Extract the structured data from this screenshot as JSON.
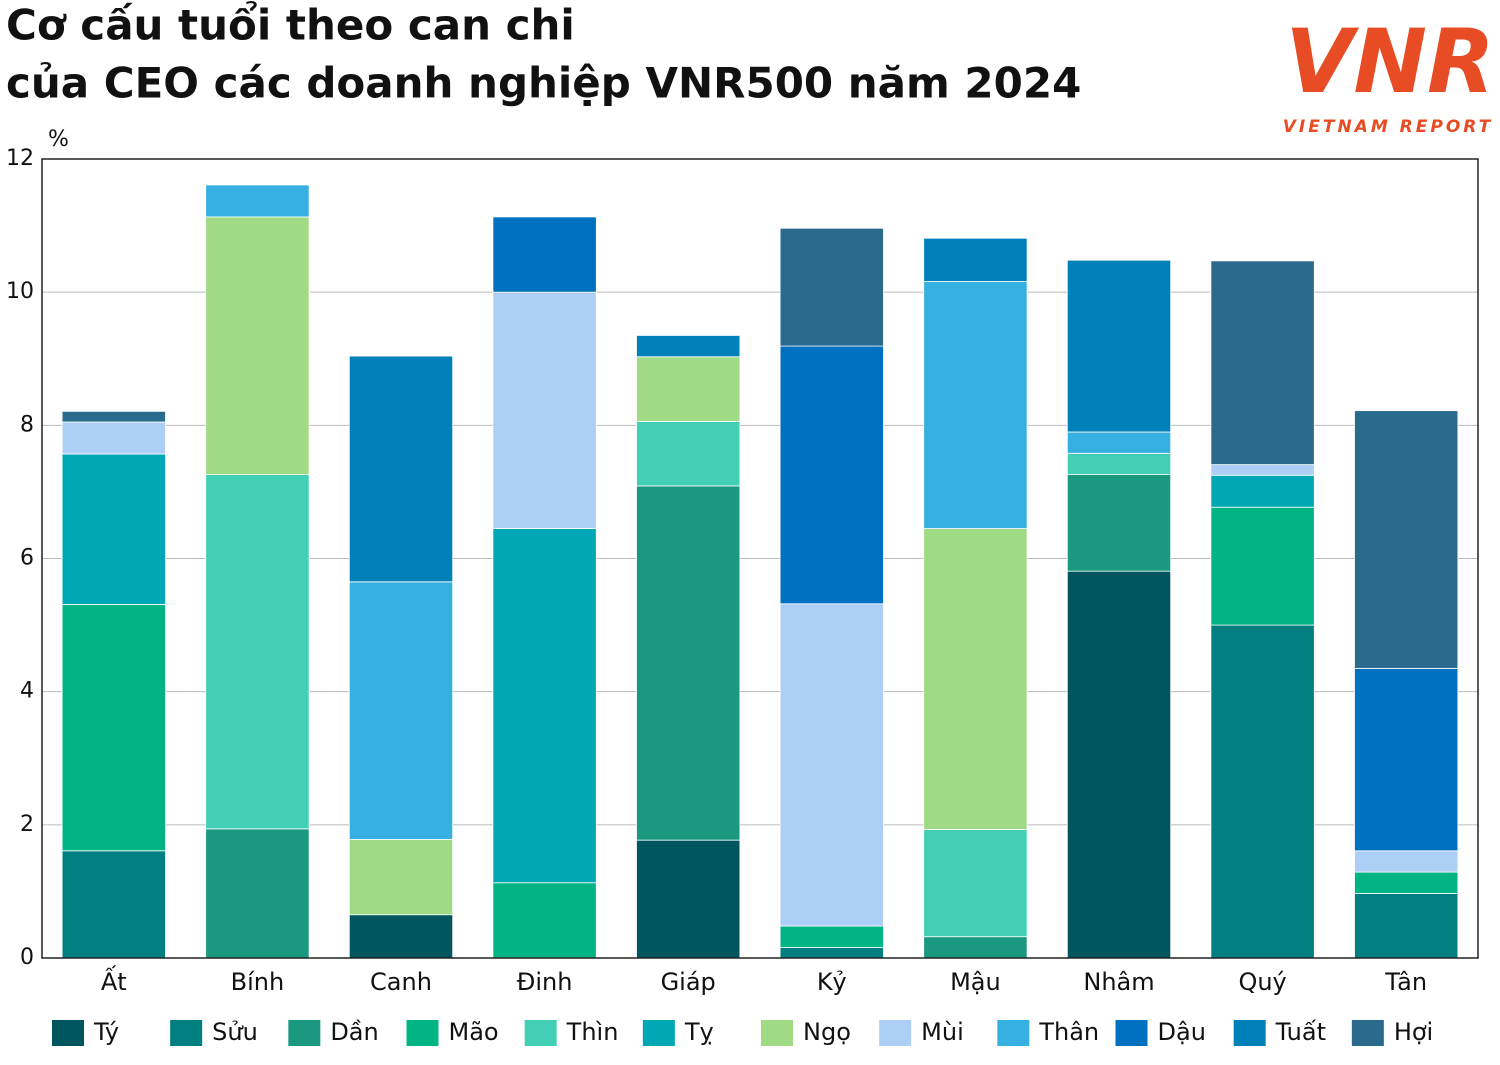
{
  "chart_data": {
    "type": "stacked-bar",
    "title": [
      "Cơ cấu tuổi theo can chi",
      "của CEO các doanh nghiệp VNR500 năm 2024"
    ],
    "logo": {
      "mark": "VNR",
      "text": "VIETNAM REPORT"
    },
    "y_unit": "%",
    "categories": [
      "Ất",
      "Bính",
      "Canh",
      "Đinh",
      "Giáp",
      "Kỷ",
      "Mậu",
      "Nhâm",
      "Quý",
      "Tân"
    ],
    "series": [
      {
        "name": "Tý",
        "color": "#00565e",
        "values": [
          0,
          0,
          0.65,
          0,
          1.77,
          0,
          0,
          5.81,
          0,
          0
        ]
      },
      {
        "name": "Sửu",
        "color": "#007f80",
        "values": [
          1.61,
          0,
          0,
          0,
          0,
          0.16,
          0,
          0,
          5.0,
          0.97
        ]
      },
      {
        "name": "Dần",
        "color": "#1a9880",
        "values": [
          0,
          1.94,
          0,
          0,
          5.32,
          0,
          0.32,
          1.45,
          0,
          0
        ]
      },
      {
        "name": "Mão",
        "color": "#00b483",
        "values": [
          3.7,
          0,
          0,
          1.13,
          0,
          0.32,
          0,
          0,
          1.77,
          0.32
        ]
      },
      {
        "name": "Thìn",
        "color": "#42cfb5",
        "values": [
          0,
          5.32,
          0,
          0,
          0.97,
          0,
          1.61,
          0.32,
          0,
          0
        ]
      },
      {
        "name": "Tỵ",
        "color": "#00a8b5",
        "values": [
          2.26,
          0,
          0,
          5.32,
          0,
          0,
          0,
          0,
          0.48,
          0
        ]
      },
      {
        "name": "Ngọ",
        "color": "#a1da85",
        "values": [
          0,
          3.87,
          1.13,
          0,
          0.97,
          0,
          4.52,
          0,
          0,
          0
        ]
      },
      {
        "name": "Mùi",
        "color": "#aecff5",
        "values": [
          0.48,
          0,
          0,
          3.55,
          0,
          4.84,
          0,
          0,
          0.16,
          0.32
        ]
      },
      {
        "name": "Thân",
        "color": "#35b0e0",
        "values": [
          0,
          0.48,
          3.87,
          0,
          0,
          0,
          3.71,
          0.32,
          0,
          0
        ]
      },
      {
        "name": "Dậu",
        "color": "#0070c0",
        "values": [
          0,
          0,
          0,
          1.13,
          0,
          3.87,
          0,
          0,
          0,
          2.74
        ]
      },
      {
        "name": "Tuất",
        "color": "#0080b8",
        "values": [
          0,
          0,
          3.39,
          0,
          0.32,
          0,
          0.65,
          2.58,
          0,
          0
        ]
      },
      {
        "name": "Hợi",
        "color": "#2a6a8c",
        "values": [
          0.16,
          0,
          0,
          0,
          0,
          1.77,
          0,
          0,
          3.06,
          3.87
        ]
      }
    ],
    "ylim": [
      0,
      12
    ],
    "yticks": [
      0,
      2,
      4,
      6,
      8,
      10,
      12
    ],
    "grid": true
  }
}
